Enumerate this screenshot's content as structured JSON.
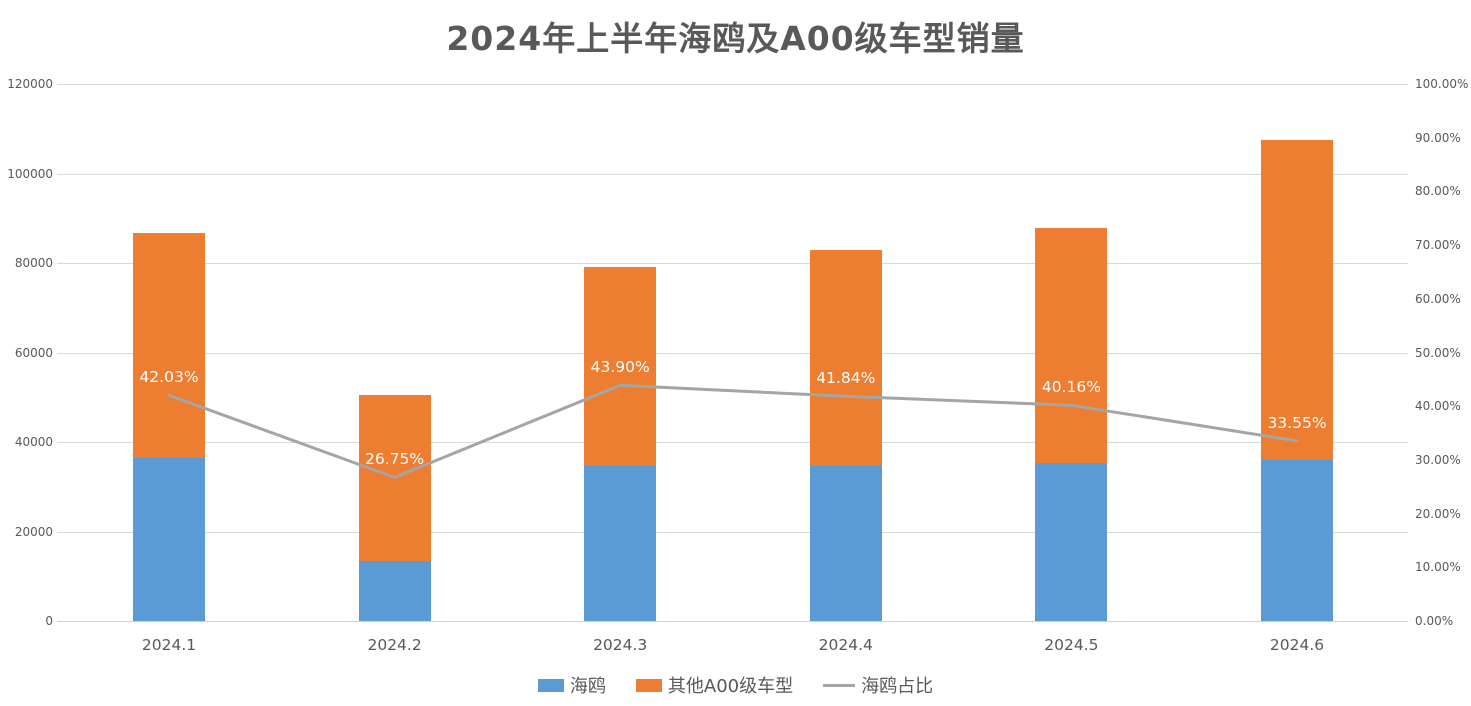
{
  "title": "2024年上半年海鸥及A00级车型销量",
  "colors": {
    "seagull_blue": "#5B9BD5",
    "other_orange": "#ED7D31",
    "line_gray": "#A5A5A5",
    "title_text": "#595959",
    "axis_text": "#595959",
    "gridline": "#D9D9D9",
    "data_label_text": "#FFFFFF",
    "background": "#FFFFFF"
  },
  "chart_data": {
    "type": "bar",
    "subtype": "stacked-bars-with-percentage-line",
    "title": "2024年上半年海鸥及A00级车型销量",
    "categories": [
      "2024.1",
      "2024.2",
      "2024.3",
      "2024.4",
      "2024.5",
      "2024.6"
    ],
    "series": [
      {
        "name": "海鸥",
        "type": "bar",
        "stack": "sales",
        "color": "#5B9BD5",
        "axis": "left",
        "values": [
          36440,
          13500,
          34730,
          34690,
          35290,
          36100
        ]
      },
      {
        "name": "其他A00级车型",
        "type": "bar",
        "stack": "sales",
        "color": "#ED7D31",
        "axis": "left",
        "values": [
          50270,
          36975,
          44380,
          48210,
          52580,
          71500
        ]
      },
      {
        "name": "海鸥占比",
        "type": "line",
        "color": "#A5A5A5",
        "axis": "right",
        "values": [
          42.03,
          26.75,
          43.9,
          41.84,
          40.16,
          33.55
        ],
        "point_labels": [
          "42.03%",
          "26.75%",
          "43.90%",
          "41.84%",
          "40.16%",
          "33.55%"
        ]
      }
    ],
    "stack_totals": [
      86710,
      50475,
      79110,
      82900,
      87870,
      107600
    ],
    "left_axis": {
      "min": 0,
      "max": 120000,
      "step": 20000,
      "tick_labels": [
        "0",
        "20000",
        "40000",
        "60000",
        "80000",
        "100000",
        "120000"
      ]
    },
    "right_axis": {
      "min": 0,
      "max": 100,
      "step": 10,
      "tick_labels": [
        "0.00%",
        "10.00%",
        "20.00%",
        "30.00%",
        "40.00%",
        "50.00%",
        "60.00%",
        "70.00%",
        "80.00%",
        "90.00%",
        "100.00%"
      ]
    },
    "grid": "horizontal-only",
    "legend_position": "bottom"
  },
  "legend": {
    "items": [
      {
        "label": "海鸥",
        "swatch": "rect",
        "color": "#5B9BD5"
      },
      {
        "label": "其他A00级车型",
        "swatch": "rect",
        "color": "#ED7D31"
      },
      {
        "label": "海鸥占比",
        "swatch": "line",
        "color": "#A5A5A5"
      }
    ]
  }
}
